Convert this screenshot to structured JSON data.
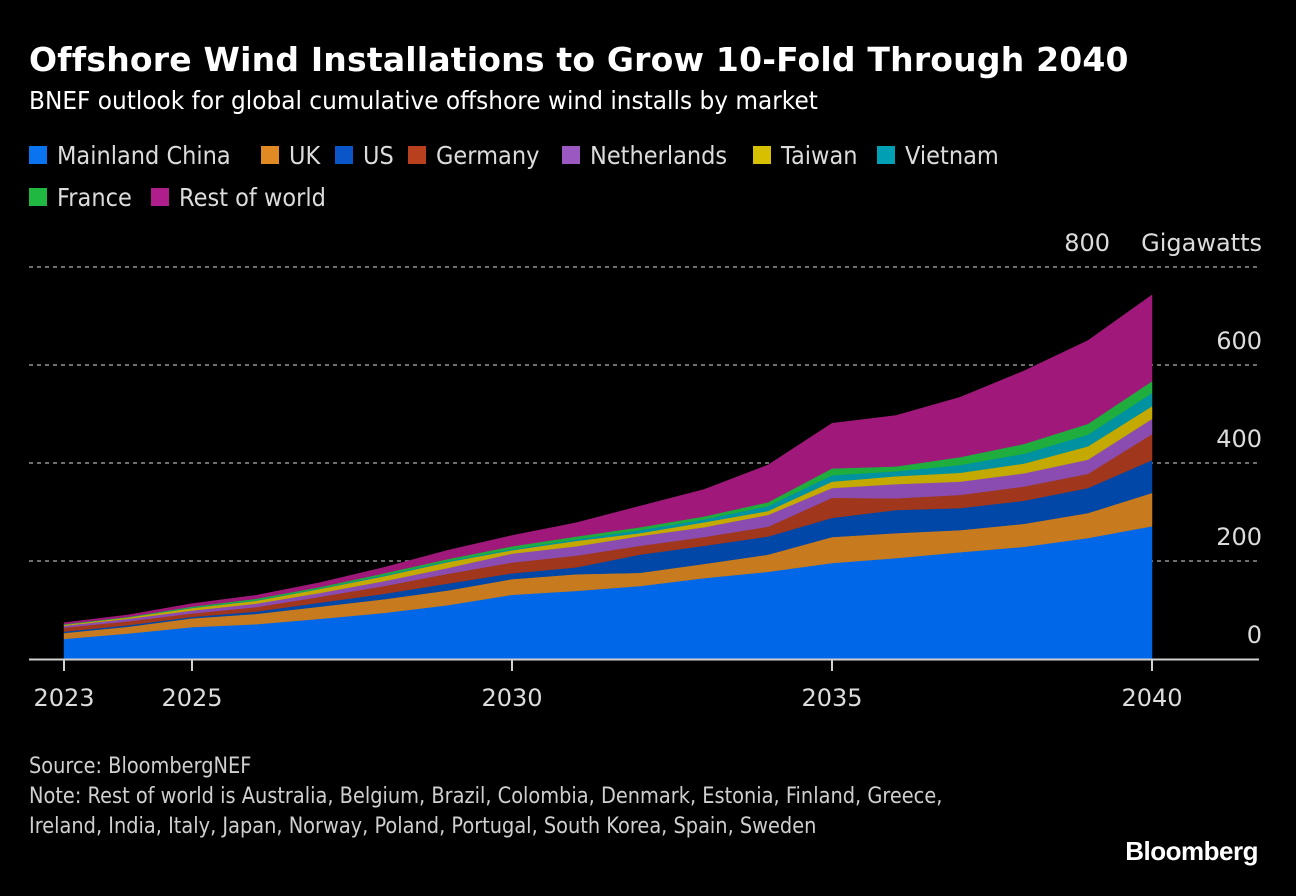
{
  "header": {
    "title": "Offshore Wind Installations to Grow 10-Fold Through 2040",
    "subtitle": "BNEF outlook for global cumulative offshore wind installs by market"
  },
  "footer": {
    "source": "Source: BloombergNEF",
    "note": "Note: Rest of world is Australia, Belgium, Brazil, Colombia, Denmark, Estonia, Finland, Greece, Ireland, India, Italy, Japan, Norway, Poland, Portugal, South Korea, Spain, Sweden",
    "brand": "Bloomberg"
  },
  "chart_data": {
    "type": "area",
    "stacked": true,
    "title": "Offshore Wind Installations to Grow 10-Fold Through 2040",
    "subtitle": "BNEF outlook for global cumulative offshore wind installs by market",
    "xlabel": "",
    "ylabel": "Gigawatts",
    "ylim": [
      0,
      800
    ],
    "yticks": [
      0,
      200,
      400,
      600,
      800
    ],
    "ytick_labels": [
      "0",
      "200",
      "400",
      "600",
      "800"
    ],
    "y_unit_label": "Gigawatts",
    "xlim": [
      2023,
      2040
    ],
    "xticks": [
      2023,
      2025,
      2030,
      2035,
      2040
    ],
    "xtick_labels": [
      "2023",
      "2025",
      "2030",
      "2035",
      "2040"
    ],
    "grid": "horizontal-dotted",
    "legend_position": "top-left",
    "x": [
      2023,
      2024,
      2025,
      2026,
      2027,
      2028,
      2029,
      2030,
      2031,
      2032,
      2033,
      2034,
      2035,
      2036,
      2037,
      2038,
      2039,
      2040
    ],
    "series": [
      {
        "name": "Mainland China",
        "color": "#0068e8",
        "values": [
          41,
          52,
          65,
          71,
          82,
          94,
          110,
          131,
          139,
          149,
          165,
          178,
          196,
          206,
          218,
          229,
          247,
          271
        ]
      },
      {
        "name": "UK",
        "color": "#c87a1e",
        "values": [
          12,
          14,
          18,
          21,
          25,
          28,
          30,
          32,
          34,
          27,
          29,
          35,
          53,
          51,
          45,
          47,
          51,
          68
        ]
      },
      {
        "name": "US",
        "color": "#0047a8",
        "values": [
          3,
          3,
          3,
          5,
          8,
          11,
          14,
          12,
          14,
          37,
          37,
          37,
          39,
          47,
          45,
          47,
          51,
          67
        ]
      },
      {
        "name": "Germany",
        "color": "#a0361c",
        "values": [
          8,
          8,
          7,
          9,
          12,
          16,
          20,
          22,
          24,
          18,
          18,
          20,
          41,
          24,
          27,
          29,
          29,
          53
        ]
      },
      {
        "name": "Netherlands",
        "color": "#8a4cb0",
        "values": [
          4,
          5,
          6,
          7,
          8,
          10,
          12,
          18,
          19,
          20,
          20,
          24,
          20,
          29,
          27,
          27,
          29,
          31
        ]
      },
      {
        "name": "Taiwan",
        "color": "#c4aa00",
        "values": [
          2,
          3,
          5,
          6,
          8,
          10,
          12,
          7,
          11,
          6,
          10,
          8,
          13,
          16,
          18,
          20,
          27,
          26
        ]
      },
      {
        "name": "Vietnam",
        "color": "#0092a0",
        "values": [
          0,
          0,
          1,
          1,
          1,
          2,
          2,
          2,
          3,
          6,
          6,
          10,
          13,
          10,
          16,
          20,
          24,
          27
        ]
      },
      {
        "name": "France",
        "color": "#1fae3e",
        "values": [
          1,
          1,
          2,
          3,
          3,
          4,
          4,
          6,
          6,
          6,
          6,
          8,
          14,
          10,
          16,
          20,
          22,
          24
        ]
      },
      {
        "name": "Rest of world",
        "color": "#a0197a",
        "values": [
          3,
          4,
          6,
          7,
          9,
          12,
          18,
          22,
          28,
          43,
          55,
          76,
          92,
          104,
          122,
          149,
          170,
          176
        ]
      }
    ]
  },
  "legend": {
    "items": [
      {
        "label": "Mainland China",
        "color": "#0a74f0"
      },
      {
        "label": "UK",
        "color": "#e08a24"
      },
      {
        "label": "US",
        "color": "#0a55c8"
      },
      {
        "label": "Germany",
        "color": "#b8401e"
      },
      {
        "label": "Netherlands",
        "color": "#9a58c0"
      },
      {
        "label": "Taiwan",
        "color": "#d6c000"
      },
      {
        "label": "Vietnam",
        "color": "#00a0b4"
      },
      {
        "label": "France",
        "color": "#20b840"
      },
      {
        "label": "Rest of world",
        "color": "#b01e8c"
      }
    ]
  }
}
